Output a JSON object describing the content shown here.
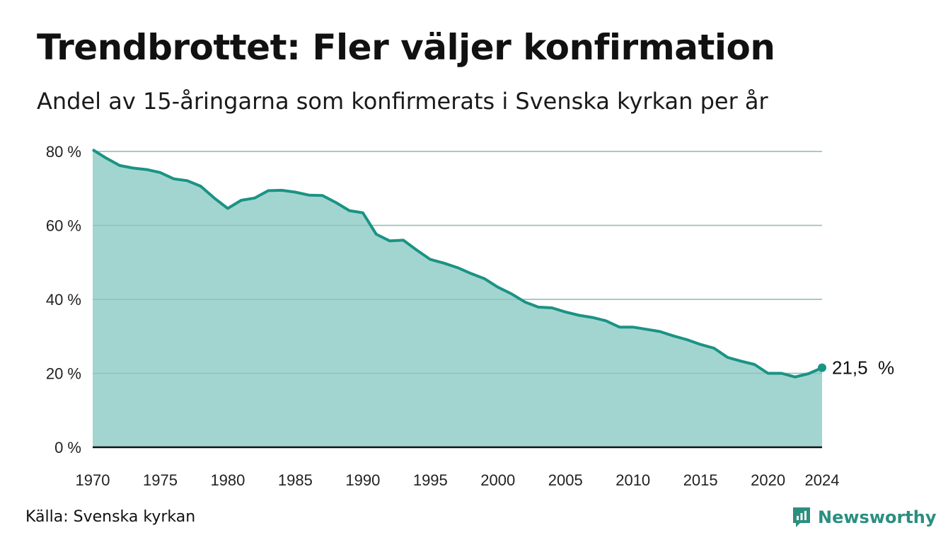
{
  "title": "Trendbrottet: Fler väljer konfirmation",
  "subtitle": "Andel av 15-åringarna som konfirmerats i Svenska kyrkan per år",
  "source": "Källa: Svenska kyrkan",
  "brand": {
    "name": "Newsworthy",
    "icon": "newsworthy-logo-icon",
    "color": "#2b8f80"
  },
  "colors": {
    "line": "#1a9384",
    "area": "#a3d5d0",
    "grid": "#dcdcdc",
    "axis": "#111111"
  },
  "chart_data": {
    "type": "area",
    "title": "Trendbrottet: Fler väljer konfirmation",
    "subtitle": "Andel av 15-åringarna som konfirmerats i Svenska kyrkan per år",
    "xlabel": "",
    "ylabel": "",
    "ylim": [
      0,
      80
    ],
    "xlim": [
      1970,
      2024
    ],
    "y_ticks": [
      0,
      20,
      40,
      60,
      80
    ],
    "y_tick_labels": [
      "0 %",
      "20 %",
      "40 %",
      "60 %",
      "80 %"
    ],
    "x_ticks": [
      1970,
      1975,
      1980,
      1985,
      1990,
      1995,
      2000,
      2005,
      2010,
      2015,
      2020,
      2024
    ],
    "x_tick_labels": [
      "1970",
      "1975",
      "1980",
      "1985",
      "1990",
      "1995",
      "2000",
      "2005",
      "2010",
      "2015",
      "2020",
      "2024"
    ],
    "grid": true,
    "last_label": "21,5  %",
    "series": [
      {
        "x": [
          1970,
          1971,
          1972,
          1973,
          1974,
          1975,
          1976,
          1977,
          1978,
          1979,
          1980,
          1981,
          1982,
          1983,
          1984,
          1985,
          1986,
          1987,
          1988,
          1989,
          1990,
          1991,
          1992,
          1993,
          1994,
          1995,
          1996,
          1997,
          1998,
          1999,
          2000,
          2001,
          2002,
          2003,
          2004,
          2005,
          2006,
          2007,
          2008,
          2009,
          2010,
          2011,
          2012,
          2013,
          2014,
          2015,
          2016,
          2017,
          2018,
          2019,
          2020,
          2021,
          2022,
          2023,
          2024
        ],
        "values": [
          80.5,
          78.2,
          76.2,
          75.5,
          75.1,
          74.3,
          72.6,
          72.1,
          70.6,
          67.4,
          64.6,
          66.8,
          67.4,
          69.4,
          69.5,
          69.0,
          68.2,
          68.1,
          66.2,
          64.0,
          63.4,
          57.6,
          55.8,
          56.0,
          53.3,
          50.8,
          49.8,
          48.6,
          47.0,
          45.6,
          43.3,
          41.5,
          39.3,
          37.9,
          37.7,
          36.6,
          35.7,
          35.1,
          34.2,
          32.5,
          32.5,
          31.9,
          31.3,
          30.1,
          29.1,
          27.8,
          26.8,
          24.3,
          23.3,
          22.4,
          20.0,
          20.0,
          19.0,
          19.9,
          21.5
        ]
      }
    ]
  }
}
